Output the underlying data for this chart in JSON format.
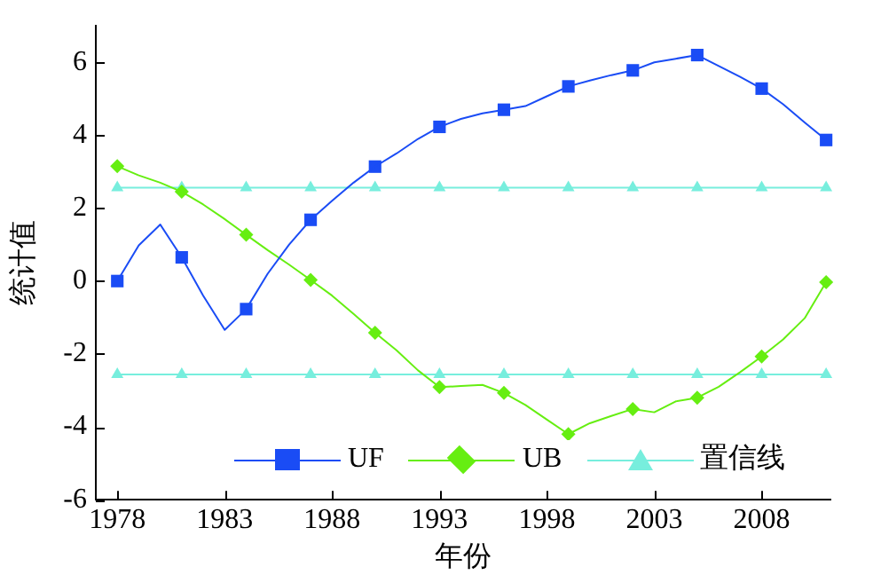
{
  "chart_data": {
    "type": "line",
    "xlabel": "年份",
    "ylabel": "统计值",
    "xlim": [
      1977,
      2011.2
    ],
    "xticks": [
      1978,
      1983,
      1988,
      1993,
      1998,
      2003,
      2008
    ],
    "ylim": [
      -6,
      7
    ],
    "yticks": [
      -6,
      -4,
      -2,
      0,
      2,
      4,
      6
    ],
    "grid": false,
    "legend": "bottom",
    "series": [
      {
        "color": "#1a4cf5",
        "marker": "none",
        "x": [
          1978,
          1979,
          1980,
          1981,
          1982,
          1983,
          1984,
          1985,
          1986,
          1987,
          1988,
          1989,
          1990,
          1991,
          1992,
          1993,
          1994,
          1995,
          1996,
          1997,
          1998,
          1999,
          2000,
          2001,
          2002,
          2003,
          2004,
          2005,
          2006,
          2007,
          2008,
          2009,
          2010,
          2011
        ],
        "values": [
          0,
          0.98,
          1.55,
          0.65,
          -0.4,
          -1.34,
          -0.77,
          0.2,
          1.0,
          1.68,
          2.2,
          2.7,
          3.14,
          3.5,
          3.9,
          4.23,
          4.45,
          4.6,
          4.7,
          4.8,
          5.07,
          5.34,
          5.5,
          5.65,
          5.78,
          6.0,
          6.1,
          6.2,
          5.9,
          5.6,
          5.28,
          4.85,
          4.35,
          3.87
        ]
      },
      {
        "name": "UF",
        "type": "scatter",
        "color": "#1a4cf5",
        "marker": "square",
        "x": [
          1978,
          1981,
          1984,
          1987,
          1990,
          1993,
          1996,
          1999,
          2002,
          2005,
          2008,
          2011
        ],
        "values": [
          0,
          0.65,
          -0.77,
          1.68,
          3.14,
          4.23,
          4.7,
          5.34,
          5.78,
          6.2,
          5.28,
          3.87
        ]
      },
      {
        "color": "#66ee11",
        "marker": "none",
        "x": [
          1978,
          1979,
          1980,
          1981,
          1982,
          1983,
          1984,
          1985,
          1986,
          1987,
          1988,
          1989,
          1990,
          1991,
          1992,
          1993,
          1994,
          1995,
          1996,
          1997,
          1998,
          1999,
          2000,
          2001,
          2002,
          2003,
          2004,
          2005,
          2006,
          2007,
          2008,
          2009,
          2010,
          2011
        ],
        "values": [
          3.15,
          2.9,
          2.7,
          2.45,
          2.1,
          1.7,
          1.27,
          0.85,
          0.45,
          0.03,
          -0.4,
          -0.9,
          -1.42,
          -1.9,
          -2.45,
          -2.91,
          -2.88,
          -2.85,
          -3.07,
          -3.4,
          -3.8,
          -4.2,
          -3.9,
          -3.7,
          -3.51,
          -3.6,
          -3.3,
          -3.2,
          -2.9,
          -2.5,
          -2.07,
          -1.6,
          -1.02,
          -0.03
        ]
      },
      {
        "name": "UB",
        "type": "scatter",
        "color": "#66ee11",
        "marker": "diamond",
        "x": [
          1978,
          1981,
          1984,
          1987,
          1990,
          1993,
          1996,
          1999,
          2002,
          2005,
          2008,
          2011
        ],
        "values": [
          3.15,
          2.45,
          1.27,
          0.03,
          -1.42,
          -2.91,
          -3.07,
          -4.2,
          -3.51,
          -3.2,
          -2.07,
          -0.03
        ]
      },
      {
        "name": "置信线",
        "color": "#77eedd",
        "marker": "triangle",
        "x": [
          1978,
          1981,
          1984,
          1987,
          1990,
          1993,
          1996,
          1999,
          2002,
          2005,
          2008,
          2011
        ],
        "values": [
          2.56,
          2.56,
          2.56,
          2.56,
          2.56,
          2.56,
          2.56,
          2.56,
          2.56,
          2.56,
          2.56,
          2.56
        ]
      },
      {
        "color": "#77eedd",
        "marker": "triangle",
        "x": [
          1978,
          1981,
          1984,
          1987,
          1990,
          1993,
          1996,
          1999,
          2002,
          2005,
          2008,
          2011
        ],
        "values": [
          -2.56,
          -2.56,
          -2.56,
          -2.56,
          -2.56,
          -2.56,
          -2.56,
          -2.56,
          -2.56,
          -2.56,
          -2.56,
          -2.56
        ]
      }
    ]
  }
}
